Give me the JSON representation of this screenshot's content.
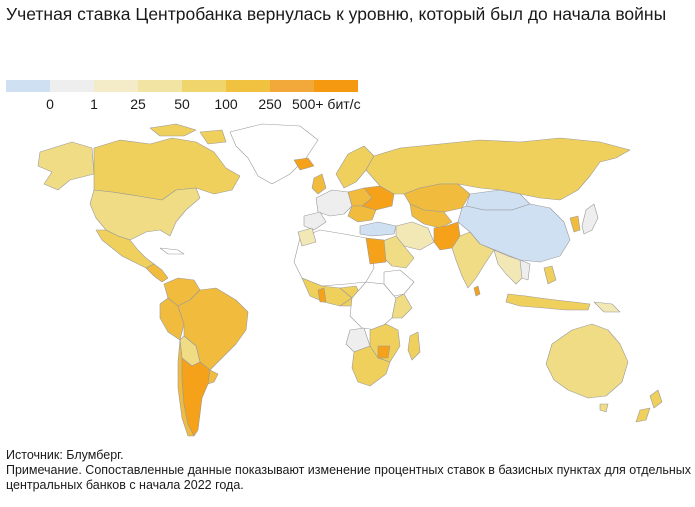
{
  "title": "Учетная ставка Центробанка вернулась к уровню, который был до начала войны",
  "legend": {
    "colors": [
      "#cfe0f2",
      "#eeeeee",
      "#f4ecc8",
      "#f2e4a2",
      "#f0d56d",
      "#f1c140",
      "#f2a93a",
      "#f59a10"
    ],
    "ticks": [
      "0",
      "1",
      "25",
      "50",
      "100",
      "250",
      "500+ бит/с"
    ]
  },
  "map": {
    "categories": {
      "negative": "#cfe0f2",
      "zero": "#eeeeee",
      "no_data": "#ffffff",
      "b25": "#f2e8b6",
      "b50": "#f0dc84",
      "b100": "#efd05c",
      "b250": "#f1bc3e",
      "b500": "#f5a21a"
    },
    "countries": [
      {
        "name": "Canada",
        "category": "b100"
      },
      {
        "name": "USA",
        "category": "b50"
      },
      {
        "name": "Mexico",
        "category": "b100"
      },
      {
        "name": "Greenland",
        "category": "no_data"
      },
      {
        "name": "Brazil",
        "category": "b250"
      },
      {
        "name": "Argentina",
        "category": "b500"
      },
      {
        "name": "Chile",
        "category": "b250"
      },
      {
        "name": "Russia",
        "category": "b100"
      },
      {
        "name": "China",
        "category": "negative"
      },
      {
        "name": "India",
        "category": "b50"
      },
      {
        "name": "Australia",
        "category": "b50"
      },
      {
        "name": "Egypt",
        "category": "b500"
      },
      {
        "name": "Saudi Arabia",
        "category": "b50"
      },
      {
        "name": "Kazakhstan",
        "category": "b250"
      },
      {
        "name": "Ukraine",
        "category": "b500"
      },
      {
        "name": "Pakistan",
        "category": "b500"
      },
      {
        "name": "South Africa",
        "category": "b100"
      },
      {
        "name": "New Zealand",
        "category": "b100"
      },
      {
        "name": "Japan",
        "category": "zero"
      }
    ]
  },
  "source": {
    "line1": "Источник: Блумберг.",
    "line2": "Примечание. Сопоставленные данные показывают изменение процентных ставок в базисных пунктах для отдельных центральных банков с начала 2022 года."
  }
}
